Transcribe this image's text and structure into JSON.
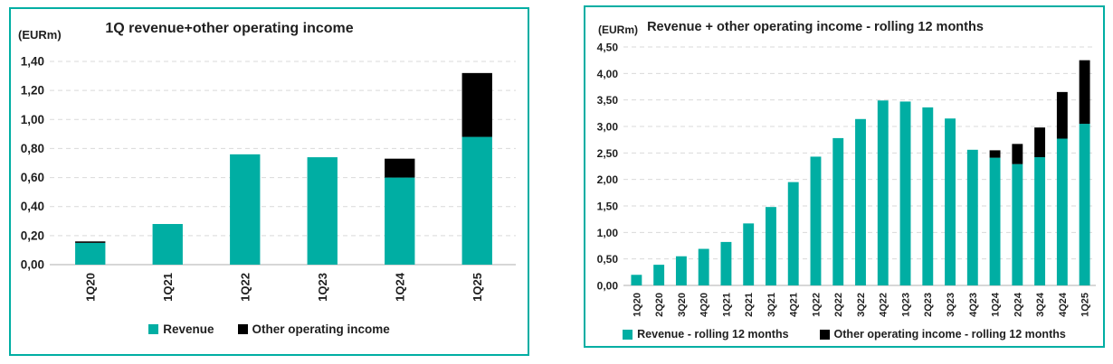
{
  "colors": {
    "teal": "#00aea3",
    "black": "#000000",
    "grid_line": "#d9d9d9",
    "axis_line": "#bfbfbf",
    "text": "#1f1f1f",
    "panel_border": "#00aea3"
  },
  "chart_data": [
    {
      "type": "bar",
      "stacked": true,
      "title": "1Q revenue+other operating income",
      "unit_label": "(EURm)",
      "categories": [
        "1Q20",
        "1Q21",
        "1Q22",
        "1Q23",
        "1Q24",
        "1Q25"
      ],
      "series": [
        {
          "name": "Revenue",
          "color": "#00aea3",
          "values": [
            0.15,
            0.28,
            0.76,
            0.74,
            0.6,
            0.88
          ]
        },
        {
          "name": "Other operating income",
          "color": "#000000",
          "values": [
            0.01,
            0.0,
            0.0,
            0.0,
            0.13,
            0.44
          ]
        }
      ],
      "ylim": [
        0,
        1.4
      ],
      "y_tick_step": 0.2,
      "y_tick_labels": [
        "0,00",
        "0,20",
        "0,40",
        "0,60",
        "0,80",
        "1,00",
        "1,20",
        "1,40"
      ],
      "grid": true,
      "legend_position": "bottom"
    },
    {
      "type": "bar",
      "stacked": true,
      "title": "Revenue + other operating income - rolling 12 months",
      "unit_label": "(EURm)",
      "categories": [
        "1Q20",
        "2Q20",
        "3Q20",
        "4Q20",
        "1Q21",
        "2Q21",
        "3Q21",
        "4Q21",
        "1Q22",
        "2Q22",
        "3Q22",
        "4Q22",
        "1Q23",
        "2Q23",
        "3Q23",
        "4Q23",
        "1Q24",
        "2Q24",
        "3Q24",
        "4Q24",
        "1Q25"
      ],
      "series": [
        {
          "name": "Revenue - rolling 12 months",
          "color": "#00aea3",
          "values": [
            0.2,
            0.39,
            0.55,
            0.69,
            0.82,
            1.17,
            1.48,
            1.95,
            2.43,
            2.78,
            3.14,
            3.49,
            3.47,
            3.36,
            3.15,
            2.56,
            2.41,
            2.29,
            2.42,
            2.77,
            3.05
          ]
        },
        {
          "name": "Other operating income - rolling 12 months",
          "color": "#000000",
          "values": [
            0.0,
            0.0,
            0.0,
            0.0,
            0.0,
            0.0,
            0.0,
            0.0,
            0.0,
            0.0,
            0.0,
            0.0,
            0.0,
            0.0,
            0.0,
            0.0,
            0.14,
            0.38,
            0.56,
            0.88,
            1.2
          ]
        }
      ],
      "ylim": [
        0,
        4.5
      ],
      "y_tick_step": 0.5,
      "y_tick_labels": [
        "0,00",
        "0,50",
        "1,00",
        "1,50",
        "2,00",
        "2,50",
        "3,00",
        "3,50",
        "4,00",
        "4,50"
      ],
      "grid": true,
      "legend_position": "bottom"
    }
  ]
}
